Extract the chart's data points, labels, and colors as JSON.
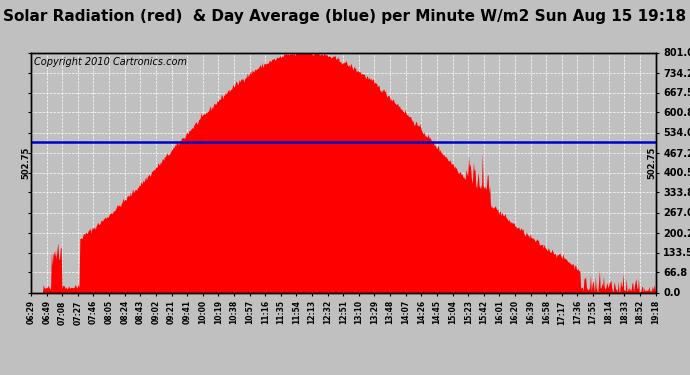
{
  "title": "Solar Radiation (red)  & Day Average (blue) per Minute W/m2 Sun Aug 15 19:18",
  "copyright": "Copyright 2010 Cartronics.com",
  "y_right_ticks": [
    0.0,
    66.8,
    133.5,
    200.2,
    267.0,
    333.8,
    400.5,
    467.2,
    534.0,
    600.8,
    667.5,
    734.2,
    801.0
  ],
  "average_value": 502.75,
  "y_max": 801.0,
  "y_min": 0.0,
  "fill_color": "#ff0000",
  "line_color": "#0000cc",
  "background_color": "#c0c0c0",
  "grid_color": "#ffffff",
  "title_fontsize": 11,
  "copyright_fontsize": 7,
  "annotation_fontsize": 6,
  "x_tick_labels": [
    "06:29",
    "06:49",
    "07:08",
    "07:27",
    "07:46",
    "08:05",
    "08:24",
    "08:43",
    "09:02",
    "09:21",
    "09:41",
    "10:00",
    "10:19",
    "10:38",
    "10:57",
    "11:16",
    "11:35",
    "11:54",
    "12:13",
    "12:32",
    "12:51",
    "13:10",
    "13:29",
    "13:48",
    "14:07",
    "14:26",
    "14:45",
    "15:04",
    "15:23",
    "15:42",
    "16:01",
    "16:20",
    "16:39",
    "16:58",
    "17:17",
    "17:36",
    "17:55",
    "18:14",
    "18:33",
    "18:52",
    "19:18"
  ]
}
